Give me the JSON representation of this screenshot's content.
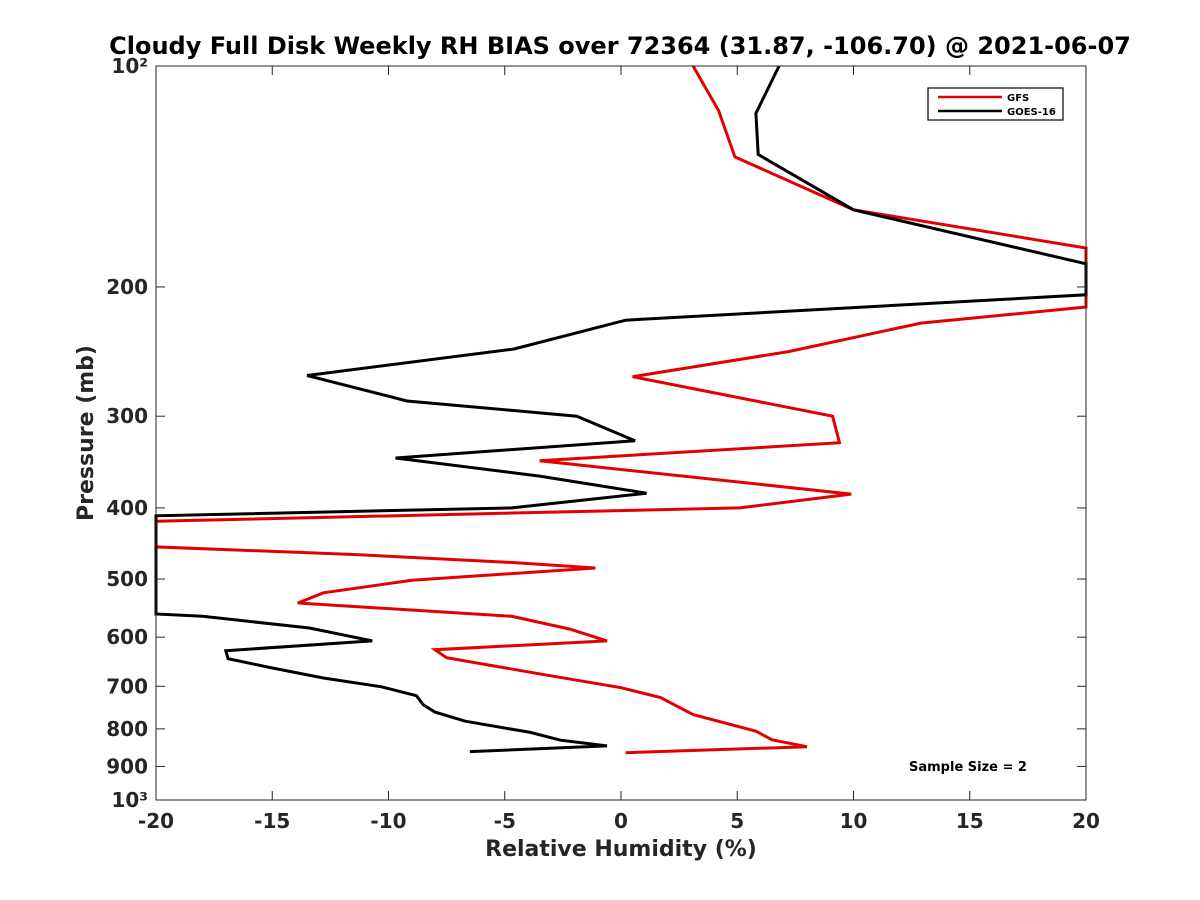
{
  "chart_data": {
    "type": "line",
    "title": "Cloudy Full Disk Weekly RH BIAS over 72364 (31.87, -106.70) @ 2021-06-07",
    "xlabel": "Relative Humidity (%)",
    "ylabel": "Pressure (mb)",
    "xlim": [
      -20,
      20
    ],
    "ylim": [
      100,
      1000
    ],
    "y_scale": "log",
    "y_reversed": true,
    "grid": false,
    "legend_position": "top-right",
    "x_ticks": [
      -20,
      -15,
      -10,
      -5,
      0,
      5,
      10,
      15,
      20
    ],
    "x_tick_labels": [
      "-20",
      "-15",
      "-10",
      "-5",
      "0",
      "5",
      "10",
      "15",
      "20"
    ],
    "y_ticks": [
      100,
      200,
      300,
      400,
      500,
      600,
      700,
      800,
      900,
      1000
    ],
    "y_tick_labels": [
      "10²",
      "200",
      "300",
      "400",
      "500",
      "600",
      "700",
      "800",
      "900",
      "10³"
    ],
    "annotation": "Sample Size = 2",
    "series": [
      {
        "name": "GFS",
        "color": "#e30000",
        "points": [
          {
            "x": 3.1,
            "y": 100
          },
          {
            "x": 4.2,
            "y": 115
          },
          {
            "x": 4.9,
            "y": 133
          },
          {
            "x": 10.0,
            "y": 157
          },
          {
            "x": 20.0,
            "y": 177
          },
          {
            "x": 20.0,
            "y": 213
          },
          {
            "x": 12.9,
            "y": 224
          },
          {
            "x": 7.2,
            "y": 245
          },
          {
            "x": 0.5,
            "y": 265
          },
          {
            "x": 9.1,
            "y": 300
          },
          {
            "x": 9.4,
            "y": 326
          },
          {
            "x": -3.5,
            "y": 345
          },
          {
            "x": 9.9,
            "y": 383
          },
          {
            "x": 5.1,
            "y": 400
          },
          {
            "x": -20.0,
            "y": 417
          },
          {
            "x": -20.0,
            "y": 452
          },
          {
            "x": -11.5,
            "y": 463
          },
          {
            "x": -4.5,
            "y": 475
          },
          {
            "x": -1.1,
            "y": 483
          },
          {
            "x": -9.0,
            "y": 502
          },
          {
            "x": -12.8,
            "y": 522
          },
          {
            "x": -13.9,
            "y": 539
          },
          {
            "x": -4.7,
            "y": 562
          },
          {
            "x": -2.2,
            "y": 585
          },
          {
            "x": -0.6,
            "y": 607
          },
          {
            "x": -8.0,
            "y": 624
          },
          {
            "x": -7.5,
            "y": 640
          },
          {
            "x": -3.3,
            "y": 675
          },
          {
            "x": 0.0,
            "y": 703
          },
          {
            "x": 1.7,
            "y": 725
          },
          {
            "x": 3.1,
            "y": 765
          },
          {
            "x": 5.8,
            "y": 806
          },
          {
            "x": 6.5,
            "y": 828
          },
          {
            "x": 8.0,
            "y": 846
          },
          {
            "x": 0.2,
            "y": 862
          }
        ]
      },
      {
        "name": "GOES-16",
        "color": "#000000",
        "points": [
          {
            "x": 6.8,
            "y": 100
          },
          {
            "x": 5.8,
            "y": 116
          },
          {
            "x": 5.9,
            "y": 132
          },
          {
            "x": 10.0,
            "y": 157
          },
          {
            "x": 20.0,
            "y": 186
          },
          {
            "x": 20.0,
            "y": 205
          },
          {
            "x": 0.2,
            "y": 222
          },
          {
            "x": -4.6,
            "y": 243
          },
          {
            "x": -13.5,
            "y": 264
          },
          {
            "x": -9.2,
            "y": 286
          },
          {
            "x": -1.9,
            "y": 300
          },
          {
            "x": 0.6,
            "y": 324
          },
          {
            "x": -9.7,
            "y": 342
          },
          {
            "x": -3.5,
            "y": 362
          },
          {
            "x": 1.1,
            "y": 382
          },
          {
            "x": -4.7,
            "y": 400
          },
          {
            "x": -20.0,
            "y": 410
          },
          {
            "x": -20.0,
            "y": 558
          },
          {
            "x": -18.0,
            "y": 562
          },
          {
            "x": -13.4,
            "y": 583
          },
          {
            "x": -10.7,
            "y": 607
          },
          {
            "x": -17.0,
            "y": 626
          },
          {
            "x": -16.9,
            "y": 642
          },
          {
            "x": -15.1,
            "y": 660
          },
          {
            "x": -12.8,
            "y": 682
          },
          {
            "x": -10.3,
            "y": 701
          },
          {
            "x": -8.8,
            "y": 721
          },
          {
            "x": -8.5,
            "y": 742
          },
          {
            "x": -8.0,
            "y": 759
          },
          {
            "x": -6.7,
            "y": 781
          },
          {
            "x": -3.9,
            "y": 809
          },
          {
            "x": -2.6,
            "y": 829
          },
          {
            "x": -0.6,
            "y": 844
          },
          {
            "x": -6.5,
            "y": 859
          }
        ]
      }
    ]
  }
}
